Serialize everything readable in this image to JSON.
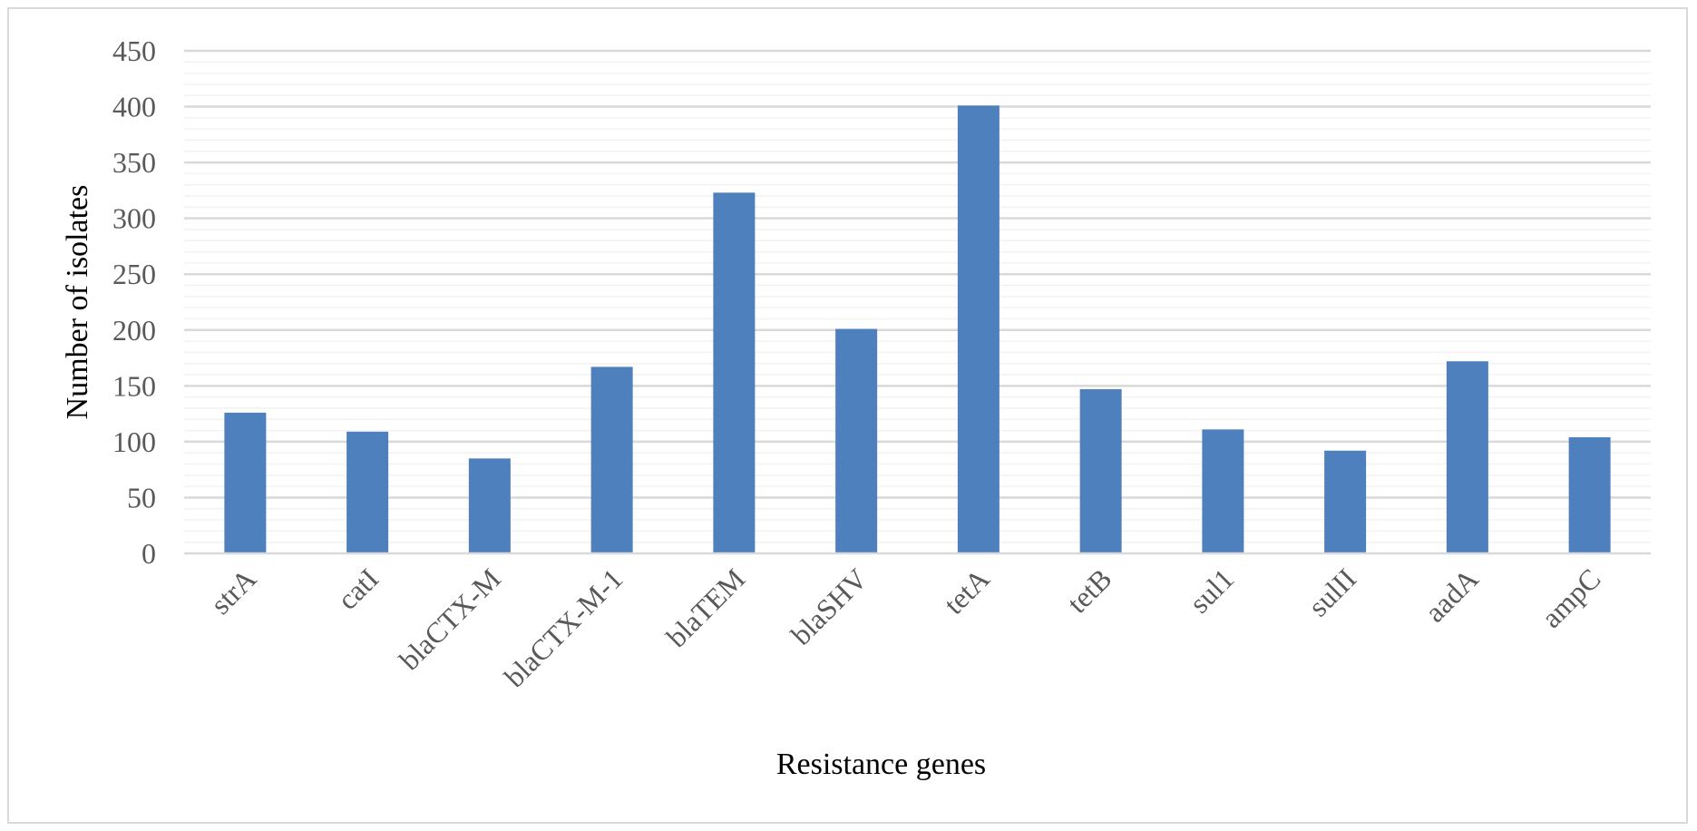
{
  "chart_data": {
    "type": "bar",
    "categories": [
      "strA",
      "catI",
      "blaCTX-M",
      "blaCTX-M-1",
      "blaTEM",
      "blaSHV",
      "tetA",
      "tetB",
      "sul1",
      "sulII",
      "aadA",
      "ampC"
    ],
    "values": [
      126,
      109,
      85,
      167,
      323,
      201,
      401,
      147,
      111,
      92,
      172,
      104
    ],
    "xlabel": "Resistance genes",
    "ylabel": "Number of isolates",
    "ylim": [
      0,
      450
    ],
    "yticks": [
      0,
      50,
      100,
      150,
      200,
      250,
      300,
      350,
      400,
      450
    ],
    "grid": true,
    "bar_color": "#4e80bd",
    "grid_color": "#d9d9d9",
    "minor_grid_color": "#f2f2f2"
  }
}
